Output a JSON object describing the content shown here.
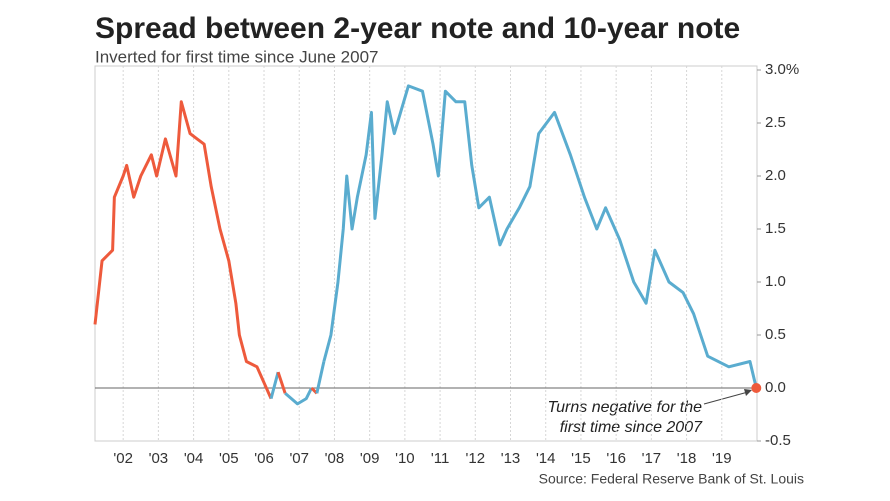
{
  "chart_data": {
    "type": "line",
    "title": "Spread between 2-year note and 10-year note",
    "subtitle": "Inverted for first time since June 2007",
    "source": "Source: Federal Reserve Bank of St. Louis",
    "annotation": [
      "Turns negative for the",
      "first time since 2007"
    ],
    "x": [
      2001.2,
      2001.4,
      2001.7,
      2001.75,
      2002.0,
      2002.1,
      2002.3,
      2002.5,
      2002.8,
      2002.95,
      2003.2,
      2003.5,
      2003.65,
      2003.9,
      2004.1,
      2004.3,
      2004.5,
      2004.75,
      2005.0,
      2005.2,
      2005.3,
      2005.5,
      2005.8,
      2006.0,
      2006.2,
      2006.4,
      2006.6,
      2006.95,
      2007.2,
      2007.35,
      2007.5,
      2007.7,
      2007.9,
      2008.1,
      2008.25,
      2008.35,
      2008.5,
      2008.65,
      2008.9,
      2009.05,
      2009.15,
      2009.35,
      2009.5,
      2009.7,
      2010.1,
      2010.5,
      2010.8,
      2010.95,
      2011.15,
      2011.45,
      2011.7,
      2011.9,
      2012.1,
      2012.4,
      2012.7,
      2012.9,
      2013.25,
      2013.55,
      2013.8,
      2014.25,
      2014.7,
      2015.1,
      2015.45,
      2015.7,
      2016.1,
      2016.5,
      2016.85,
      2017.1,
      2017.5,
      2017.9,
      2018.2,
      2018.6,
      2019.2,
      2019.8,
      2019.98
    ],
    "series": [
      {
        "name": "Spread",
        "color": "#5aaccf",
        "negative_color": "#ee5a3c",
        "values": [
          0.6,
          1.2,
          1.3,
          1.8,
          2.0,
          2.1,
          1.8,
          2.0,
          2.2,
          2.0,
          2.35,
          2.0,
          2.7,
          2.4,
          2.35,
          2.3,
          1.9,
          1.5,
          1.2,
          0.8,
          0.5,
          0.25,
          0.2,
          0.05,
          -0.1,
          0.15,
          -0.05,
          -0.15,
          -0.1,
          0.0,
          -0.05,
          0.25,
          0.5,
          1.0,
          1.5,
          2.0,
          1.5,
          1.8,
          2.2,
          2.6,
          1.6,
          2.2,
          2.7,
          2.4,
          2.85,
          2.8,
          2.3,
          2.0,
          2.8,
          2.7,
          2.7,
          2.1,
          1.7,
          1.8,
          1.35,
          1.5,
          1.7,
          1.9,
          2.4,
          2.6,
          2.2,
          1.8,
          1.5,
          1.7,
          1.4,
          1.0,
          0.8,
          1.3,
          1.0,
          0.9,
          0.7,
          0.3,
          0.2,
          0.25,
          0.0
        ]
      }
    ],
    "marker_color": "#ee5a3c",
    "xlim": [
      2001.2,
      2020.0
    ],
    "xticks": [
      {
        "value": 2002,
        "label": "'02"
      },
      {
        "value": 2003,
        "label": "'03"
      },
      {
        "value": 2004,
        "label": "'04"
      },
      {
        "value": 2005,
        "label": "'05"
      },
      {
        "value": 2006,
        "label": "'06"
      },
      {
        "value": 2007,
        "label": "'07"
      },
      {
        "value": 2008,
        "label": "'08"
      },
      {
        "value": 2009,
        "label": "'09"
      },
      {
        "value": 2010,
        "label": "'10"
      },
      {
        "value": 2011,
        "label": "'11"
      },
      {
        "value": 2012,
        "label": "'12"
      },
      {
        "value": 2013,
        "label": "'13"
      },
      {
        "value": 2014,
        "label": "'14"
      },
      {
        "value": 2015,
        "label": "'15"
      },
      {
        "value": 2016,
        "label": "'16"
      },
      {
        "value": 2017,
        "label": "'17"
      },
      {
        "value": 2018,
        "label": "'18"
      },
      {
        "value": 2019,
        "label": "'19"
      }
    ],
    "ylim": [
      -0.5,
      3.0
    ],
    "yticks": [
      {
        "value": 3.0,
        "label": "3.0%"
      },
      2.5,
      {
        "value": 2.0,
        "label": "2.0"
      },
      1.5,
      {
        "value": 1.0,
        "label": "1.0"
      },
      0.5,
      {
        "value": 0.0,
        "label": "0.0"
      },
      -0.5
    ],
    "grid": true
  }
}
